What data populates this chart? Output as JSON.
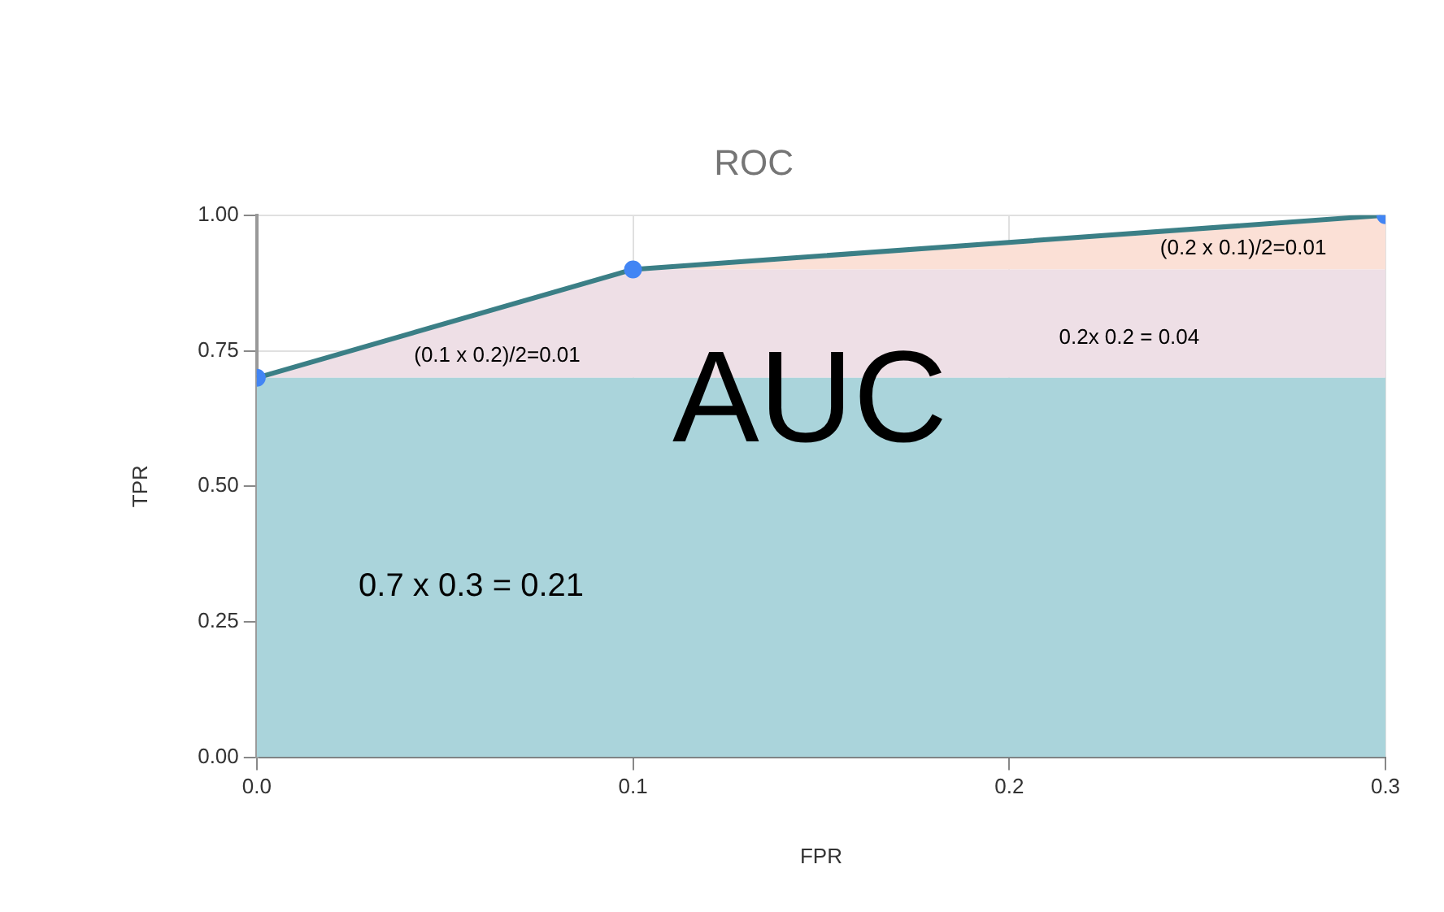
{
  "chart_data": {
    "type": "area",
    "title": "ROC",
    "xlabel": "FPR",
    "ylabel": "TPR",
    "x": [
      0,
      0.1,
      0.3
    ],
    "xlim": [
      0,
      0.3
    ],
    "xticks": [
      {
        "value": 0,
        "label": "0.0"
      },
      0.1,
      0.2,
      0.3
    ],
    "ylim": [
      0,
      1
    ],
    "yticks": [
      {
        "value": 0,
        "label": "0.00"
      },
      {
        "value": 0.25,
        "label": "0.25"
      },
      {
        "value": 0.5,
        "label": "0.50"
      },
      {
        "value": 0.75,
        "label": "0.75"
      },
      {
        "value": 1,
        "label": "1.00"
      }
    ],
    "grid": true,
    "stacked": true,
    "legend": false,
    "line_style": "solid",
    "series": [
      {
        "type": "area",
        "color": "#aad4db",
        "marker": "none",
        "values": [
          0.7,
          0.7,
          0.7
        ]
      },
      {
        "type": "area",
        "color": "#eedfe6",
        "marker": "none",
        "values": [
          0,
          0.2,
          0.2
        ]
      },
      {
        "type": "area",
        "color": "#fbe0d6",
        "marker": "circle",
        "colors": [
          "#4285f4",
          "#4285f4",
          "#4285f4"
        ],
        "values": [
          0,
          0,
          0.1
        ]
      }
    ],
    "annotations": [
      "(0.1 x 0.2)/2=0.01",
      "(0.2 x 0.1)/2=0.01",
      "0.2x 0.2 = 0.04",
      "AUC",
      "0.7 x 0.3 = 0.21"
    ]
  }
}
